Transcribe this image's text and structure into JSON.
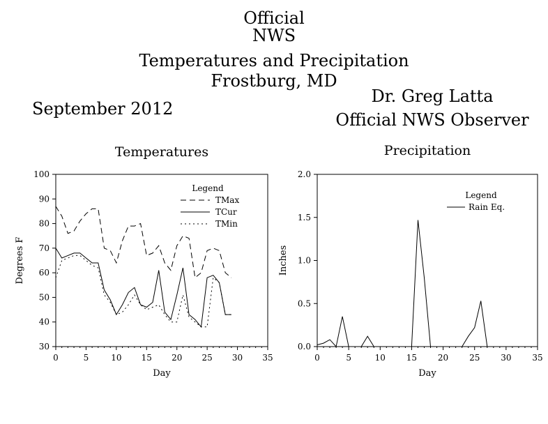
{
  "header": {
    "line1": "Official",
    "line2": "NWS",
    "line3": "Temperatures and Precipitation",
    "line4": "Frostburg, MD",
    "month": "September 2012",
    "observer": "Dr. Greg Latta",
    "observer_role": "Official NWS Observer"
  },
  "chart_data": [
    {
      "type": "line",
      "title": "Temperatures",
      "xlabel": "Day",
      "ylabel": "Degrees F",
      "xlim": [
        0,
        35
      ],
      "ylim": [
        30,
        100
      ],
      "xticks": [
        0,
        5,
        10,
        15,
        20,
        25,
        30,
        35
      ],
      "yticks": [
        30,
        40,
        50,
        60,
        70,
        80,
        90,
        100
      ],
      "legend_title": "Legend",
      "legend_placement": "top-right",
      "x": [
        0,
        1,
        2,
        3,
        4,
        5,
        6,
        7,
        8,
        9,
        10,
        11,
        12,
        13,
        14,
        15,
        16,
        17,
        18,
        19,
        20,
        21,
        22,
        23,
        24,
        25,
        26,
        27,
        28,
        29
      ],
      "series": [
        {
          "name": "TMax",
          "style": "dashed",
          "values": [
            87,
            83,
            76,
            77,
            81,
            84,
            86,
            86,
            70,
            69,
            64,
            73,
            79,
            79,
            80,
            67,
            68,
            71,
            64,
            61,
            71,
            75,
            74,
            58,
            60,
            69,
            70,
            69,
            60,
            58
          ]
        },
        {
          "name": "TCur",
          "style": "solid",
          "values": [
            70,
            66,
            67,
            68,
            68,
            66,
            64,
            64,
            53,
            49,
            43,
            47,
            52,
            54,
            47,
            46,
            48,
            61,
            44,
            41,
            51,
            62,
            43,
            41,
            38,
            58,
            59,
            56,
            43,
            43
          ]
        },
        {
          "name": "TMin",
          "style": "dotted",
          "values": [
            58,
            65,
            66,
            67,
            67,
            65,
            63,
            62,
            51,
            48,
            43,
            44,
            47,
            51,
            47,
            45,
            46,
            47,
            43,
            40,
            40,
            51,
            42,
            40,
            38,
            38,
            58,
            56,
            43,
            43
          ]
        }
      ]
    },
    {
      "type": "line",
      "title": "Precipitation",
      "xlabel": "Day",
      "ylabel": "Inches",
      "xlim": [
        0,
        35
      ],
      "ylim": [
        0,
        2
      ],
      "xticks": [
        0,
        5,
        10,
        15,
        20,
        25,
        30,
        35
      ],
      "yticks": [
        "0.0",
        "0.5",
        "1.0",
        "1.5",
        "2.0"
      ],
      "legend_title": "Legend",
      "legend_placement": "top-right",
      "x": [
        0,
        1,
        2,
        3,
        4,
        5,
        6,
        7,
        8,
        9,
        10,
        11,
        12,
        13,
        14,
        15,
        16,
        17,
        18,
        19,
        20,
        21,
        22,
        23,
        24,
        25,
        26,
        27,
        28,
        29
      ],
      "series": [
        {
          "name": "Rain Eq.",
          "style": "solid",
          "values": [
            0.02,
            0.04,
            0.08,
            0,
            0.35,
            0,
            0,
            0,
            0.12,
            0,
            0,
            0,
            0,
            0,
            0,
            0,
            1.47,
            0.8,
            0,
            0,
            0,
            0,
            0,
            0,
            0.12,
            0.22,
            0.53,
            0,
            0,
            0
          ]
        }
      ]
    }
  ]
}
